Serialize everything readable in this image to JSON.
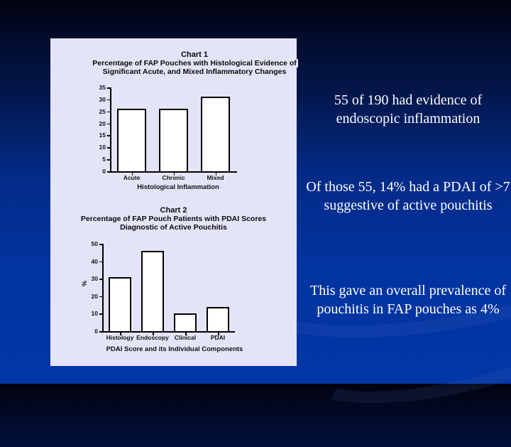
{
  "slide": {
    "background_top": "#01020f",
    "background_bottom": "#0136a6",
    "panel_color": "#e4e4f8"
  },
  "side_text": [
    "55 of 190 had evidence of endoscopic inflammation",
    "Of those 55, 14% had a PDAI of >7 suggestive of active pouchitis",
    "This gave an overall prevalence of pouchitis in FAP pouches as 4%"
  ],
  "chart_data": [
    {
      "type": "bar",
      "label": "Chart 1",
      "title": "Percentage of FAP Pouches with Histological Evidence of Significant Acute, and Mixed Inflammatory Changes",
      "title_lines": [
        "Percentage of FAP Pouches with Histological Evidence of",
        "Significant Acute, and Mixed Inflammatory Changes"
      ],
      "categories": [
        "Acute",
        "Chronic",
        "Mixed"
      ],
      "values": [
        26,
        26,
        31
      ],
      "xlabel": "Histological Inflammation",
      "ylabel": "",
      "ylim": [
        0,
        35
      ],
      "yticks": [
        0,
        5,
        10,
        15,
        20,
        25,
        30,
        35
      ],
      "grid": false,
      "legend": null
    },
    {
      "type": "bar",
      "label": "Chart 2",
      "title": "Percentage of FAP Pouch Patients with PDAI Scores Diagnostic of Active Pouchitis",
      "title_lines": [
        "Percentage of FAP Pouch Patients with PDAI Scores",
        "Diagnostic of Active Pouchitis"
      ],
      "categories": [
        "Histology",
        "Endoscopy",
        "Clinical",
        "PDAI"
      ],
      "values": [
        31,
        46,
        10,
        14
      ],
      "xlabel": "PDAI Score and its Individual Components",
      "ylabel": "%",
      "ylim": [
        0,
        50
      ],
      "yticks": [
        0,
        10,
        20,
        30,
        40,
        50
      ],
      "grid": false,
      "legend": null
    }
  ]
}
